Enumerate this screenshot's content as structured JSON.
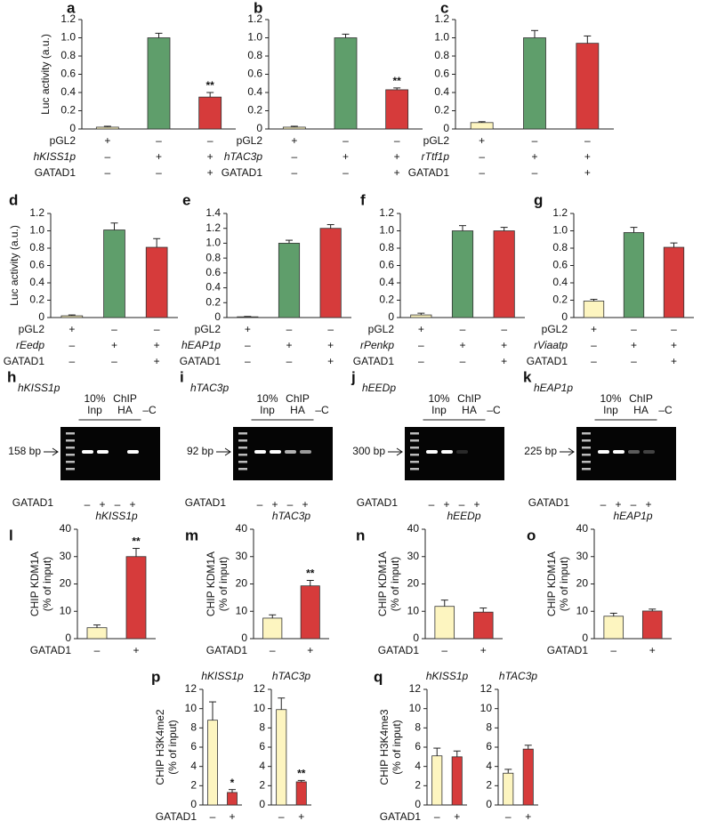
{
  "chart_data": [
    {
      "type": "bar",
      "panel": "a",
      "ylabel": [
        "Luc activity (a.u.)"
      ],
      "values": [
        0.02,
        1.0,
        0.35
      ],
      "errors": [
        0.01,
        0.05,
        0.05
      ],
      "annotations": [
        null,
        null,
        "**"
      ],
      "colors": [
        "#fdf5c0",
        "#5f9e6b",
        "#d63b3b"
      ],
      "ylim": [
        0,
        1.2
      ],
      "yticks": [
        0,
        0.2,
        0.4,
        0.6,
        0.8,
        {
          "value": 1,
          "label": "1.0"
        },
        1.2
      ],
      "rows": [
        {
          "label": "pGL2",
          "marks": [
            "+",
            "–",
            "–"
          ]
        },
        {
          "label": "hKISS1p",
          "marks": [
            "–",
            "+",
            "+"
          ]
        },
        {
          "label": "GATAD1",
          "marks": [
            "–",
            "–",
            "+"
          ]
        }
      ]
    },
    {
      "type": "bar",
      "panel": "b",
      "values": [
        0.02,
        1.0,
        0.43
      ],
      "errors": [
        0.01,
        0.04,
        0.02
      ],
      "annotations": [
        null,
        null,
        "**"
      ],
      "colors": [
        "#fdf5c0",
        "#5f9e6b",
        "#d63b3b"
      ],
      "ylim": [
        0,
        1.2
      ],
      "yticks": [
        0,
        0.2,
        0.4,
        0.6,
        0.8,
        {
          "value": 1,
          "label": "1.0"
        },
        1.2
      ],
      "rows": [
        {
          "label": "pGL2",
          "marks": [
            "+",
            "–",
            "–"
          ]
        },
        {
          "label": "hTAC3p",
          "marks": [
            "–",
            "+",
            "+"
          ]
        },
        {
          "label": "GATAD1",
          "marks": [
            "–",
            "–",
            "+"
          ]
        }
      ]
    },
    {
      "type": "bar",
      "panel": "c",
      "values": [
        0.07,
        1.0,
        0.94
      ],
      "errors": [
        0.01,
        0.08,
        0.08
      ],
      "colors": [
        "#fdf5c0",
        "#5f9e6b",
        "#d63b3b"
      ],
      "ylim": [
        0,
        1.2
      ],
      "yticks": [
        0,
        0.2,
        0.4,
        0.6,
        0.8,
        {
          "value": 1,
          "label": "1.0"
        },
        1.2
      ],
      "rows": [
        {
          "label": "pGL2",
          "marks": [
            "+",
            "–",
            "–"
          ]
        },
        {
          "label": "rTtf1p",
          "marks": [
            "–",
            "+",
            "+"
          ]
        },
        {
          "label": "GATAD1",
          "marks": [
            "–",
            "–",
            "+"
          ]
        }
      ]
    },
    {
      "type": "bar",
      "panel": "d",
      "ylabel": [
        "Luc activity (a.u.)"
      ],
      "values": [
        0.02,
        1.01,
        0.81
      ],
      "errors": [
        0.01,
        0.08,
        0.1
      ],
      "colors": [
        "#fdf5c0",
        "#5f9e6b",
        "#d63b3b"
      ],
      "ylim": [
        0,
        1.2
      ],
      "yticks": [
        0,
        0.2,
        0.4,
        0.6,
        0.8,
        {
          "value": 1,
          "label": "1.0"
        },
        1.2
      ],
      "rows": [
        {
          "label": "pGL2",
          "marks": [
            "+",
            "–",
            "–"
          ]
        },
        {
          "label": "rEedp",
          "marks": [
            "–",
            "+",
            "+"
          ]
        },
        {
          "label": "GATAD1",
          "marks": [
            "–",
            "–",
            "+"
          ]
        }
      ]
    },
    {
      "type": "bar",
      "panel": "e",
      "values": [
        0.01,
        1.0,
        1.2
      ],
      "errors": [
        0.005,
        0.04,
        0.05
      ],
      "colors": [
        "#fdf5c0",
        "#5f9e6b",
        "#d63b3b"
      ],
      "ylim": [
        0,
        1.4
      ],
      "yticks": [
        0,
        0.2,
        0.4,
        0.6,
        0.8,
        {
          "value": 1,
          "label": "1.0"
        },
        1.2,
        1.4
      ],
      "rows": [
        {
          "label": "pGL2",
          "marks": [
            "+",
            "–",
            "–"
          ]
        },
        {
          "label": "hEAP1p",
          "marks": [
            "–",
            "+",
            "+"
          ]
        },
        {
          "label": "GATAD1",
          "marks": [
            "–",
            "–",
            "+"
          ]
        }
      ]
    },
    {
      "type": "bar",
      "panel": "f",
      "values": [
        0.03,
        1.0,
        1.0
      ],
      "errors": [
        0.02,
        0.06,
        0.04
      ],
      "colors": [
        "#fdf5c0",
        "#5f9e6b",
        "#d63b3b"
      ],
      "ylim": [
        0,
        1.2
      ],
      "yticks": [
        0,
        0.2,
        0.4,
        0.6,
        0.8,
        {
          "value": 1,
          "label": "1.0"
        },
        1.2
      ],
      "rows": [
        {
          "label": "pGL2",
          "marks": [
            "+",
            "–",
            "–"
          ]
        },
        {
          "label": "rPenkp",
          "marks": [
            "–",
            "+",
            "+"
          ]
        },
        {
          "label": "GATAD1",
          "marks": [
            "–",
            "–",
            "+"
          ]
        }
      ]
    },
    {
      "type": "bar",
      "panel": "g",
      "values": [
        0.19,
        0.98,
        0.81
      ],
      "errors": [
        0.02,
        0.06,
        0.05
      ],
      "colors": [
        "#fdf5c0",
        "#5f9e6b",
        "#d63b3b"
      ],
      "ylim": [
        0,
        1.2
      ],
      "yticks": [
        0,
        0.2,
        0.4,
        0.6,
        0.8,
        {
          "value": 1,
          "label": "1.0"
        },
        1.2
      ],
      "rows": [
        {
          "label": "pGL2",
          "marks": [
            "+",
            "–",
            "–"
          ]
        },
        {
          "label": "rViaatp",
          "marks": [
            "–",
            "+",
            "+"
          ]
        },
        {
          "label": "GATAD1",
          "marks": [
            "–",
            "–",
            "+"
          ]
        }
      ]
    },
    {
      "type": "bar",
      "panel": "l",
      "title": "hKISS1p",
      "ylabel": [
        "CHIP KDM1A",
        "(% of input)"
      ],
      "values": [
        4,
        30
      ],
      "errors": [
        1,
        3
      ],
      "annotations": [
        null,
        "**"
      ],
      "colors": [
        "#fdf5c0",
        "#d63b3b"
      ],
      "ylim": [
        0,
        40
      ],
      "yticks": [
        0,
        10,
        20,
        30,
        40
      ],
      "rows": [
        {
          "label": "GATAD1",
          "marks": [
            "–",
            "+"
          ]
        }
      ]
    },
    {
      "type": "bar",
      "panel": "m",
      "title": "hTAC3p",
      "ylabel": [
        "CHIP KDM1A",
        "(% of input)"
      ],
      "values": [
        7.5,
        19.3
      ],
      "errors": [
        1.2,
        2
      ],
      "annotations": [
        null,
        "**"
      ],
      "colors": [
        "#fdf5c0",
        "#d63b3b"
      ],
      "ylim": [
        0,
        40
      ],
      "yticks": [
        0,
        10,
        20,
        30,
        40
      ],
      "rows": [
        {
          "label": "GATAD1",
          "marks": [
            "–",
            "+"
          ]
        }
      ]
    },
    {
      "type": "bar",
      "panel": "n",
      "title": "hEEDp",
      "ylabel": [
        "CHIP KDM1A",
        "(% of input)"
      ],
      "values": [
        11.8,
        9.7
      ],
      "errors": [
        2.3,
        1.5
      ],
      "colors": [
        "#fdf5c0",
        "#d63b3b"
      ],
      "ylim": [
        0,
        40
      ],
      "yticks": [
        0,
        10,
        20,
        30,
        40
      ],
      "rows": [
        {
          "label": "GATAD1",
          "marks": [
            "–",
            "+"
          ]
        }
      ]
    },
    {
      "type": "bar",
      "panel": "o",
      "title": "hEAP1p",
      "ylabel": [
        "CHIP KDM1A",
        "(% of input)"
      ],
      "values": [
        8.2,
        10.1
      ],
      "errors": [
        1.1,
        0.7
      ],
      "colors": [
        "#fdf5c0",
        "#d63b3b"
      ],
      "ylim": [
        0,
        40
      ],
      "yticks": [
        0,
        10,
        20,
        30,
        40
      ],
      "rows": [
        {
          "label": "GATAD1",
          "marks": [
            "–",
            "+"
          ]
        }
      ]
    },
    {
      "type": "bar",
      "panel": "p",
      "title": "hKISS1p",
      "ylabel": [
        "CHIP H3K4me2",
        "(% of input)"
      ],
      "values": [
        8.8,
        1.3
      ],
      "errors": [
        1.9,
        0.3
      ],
      "annotations": [
        null,
        "*"
      ],
      "colors": [
        "#fdf5c0",
        "#d63b3b"
      ],
      "ylim": [
        0,
        12
      ],
      "yticks": [
        0,
        2,
        4,
        6,
        8,
        10,
        12
      ],
      "rows": [
        {
          "label": "GATAD1",
          "marks": [
            "–",
            "+"
          ]
        }
      ]
    },
    {
      "type": "bar",
      "title": "hTAC3p",
      "values": [
        9.9,
        2.4
      ],
      "errors": [
        1.2,
        0.15
      ],
      "annotations": [
        null,
        "**"
      ],
      "colors": [
        "#fdf5c0",
        "#d63b3b"
      ],
      "ylim": [
        0,
        12
      ],
      "yticks": [
        0,
        2,
        4,
        6,
        8,
        10,
        12
      ],
      "rows": [
        {
          "marks": [
            "–",
            "+"
          ]
        }
      ]
    },
    {
      "type": "bar",
      "panel": "q",
      "title": "hKISS1p",
      "ylabel": [
        "CHIP H3K4me3",
        "(% of input)"
      ],
      "values": [
        5.1,
        5.0
      ],
      "errors": [
        0.8,
        0.6
      ],
      "colors": [
        "#fdf5c0",
        "#d63b3b"
      ],
      "ylim": [
        0,
        12
      ],
      "yticks": [
        0,
        2,
        4,
        6,
        8,
        10,
        12
      ],
      "rows": [
        {
          "label": "GATAD1",
          "marks": [
            "–",
            "+"
          ]
        }
      ]
    },
    {
      "type": "bar",
      "title": "hTAC3p",
      "values": [
        3.3,
        5.8
      ],
      "errors": [
        0.4,
        0.4
      ],
      "colors": [
        "#fdf5c0",
        "#d63b3b"
      ],
      "ylim": [
        0,
        12
      ],
      "yticks": [
        0,
        2,
        4,
        6,
        8,
        10,
        12
      ],
      "rows": [
        {
          "marks": [
            "–",
            "+"
          ]
        }
      ]
    }
  ],
  "gels": [
    {
      "panel": "h",
      "title": "hKISS1p",
      "headers": [
        [
          "10%",
          "Inp"
        ],
        [
          "ChIP",
          "HA"
        ],
        [
          "–C"
        ]
      ],
      "size": "158 bp",
      "row": {
        "label": "GATAD1",
        "marks": [
          "–",
          "+",
          "–",
          "+"
        ]
      }
    },
    {
      "panel": "i",
      "title": "hTAC3p",
      "headers": [
        [
          "10%",
          "Inp"
        ],
        [
          "ChIP",
          "HA"
        ],
        [
          "–C"
        ]
      ],
      "size": "92 bp",
      "row": {
        "label": "GATAD1",
        "marks": [
          "–",
          "+",
          "–",
          "+"
        ]
      }
    },
    {
      "panel": "j",
      "title": "hEEDp",
      "headers": [
        [
          "10%",
          "Inp"
        ],
        [
          "ChIP",
          "HA"
        ],
        [
          "–C"
        ]
      ],
      "size": "300 bp",
      "row": {
        "label": "GATAD1",
        "marks": [
          "–",
          "+",
          "–",
          "+"
        ]
      }
    },
    {
      "panel": "k",
      "title": "hEAP1p",
      "headers": [
        [
          "10%",
          "Inp"
        ],
        [
          "ChIP",
          "HA"
        ],
        [
          "–C"
        ]
      ],
      "size": "225 bp",
      "row": {
        "label": "GATAD1",
        "marks": [
          "–",
          "+",
          "–",
          "+"
        ]
      }
    }
  ]
}
